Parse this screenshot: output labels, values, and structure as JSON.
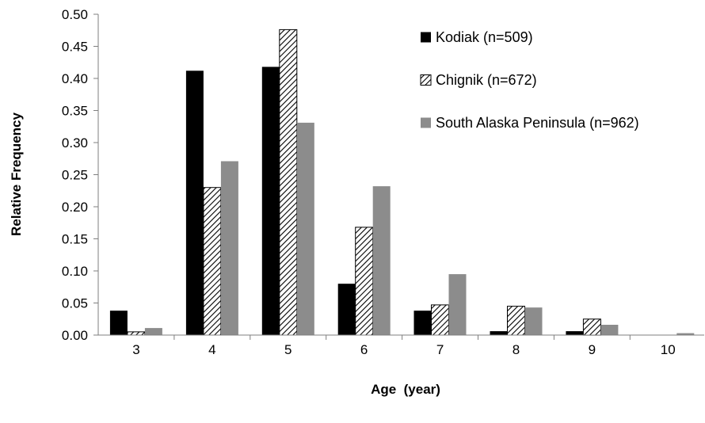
{
  "chart_data": {
    "type": "bar",
    "categories": [
      "3",
      "4",
      "5",
      "6",
      "7",
      "8",
      "9",
      "10"
    ],
    "series": [
      {
        "name": "Kodiak (n=509)",
        "fill": "solid",
        "color": "#000000",
        "values": [
          0.038,
          0.412,
          0.418,
          0.08,
          0.038,
          0.006,
          0.006,
          0.0
        ]
      },
      {
        "name": "Chignik (n=672)",
        "fill": "hatched",
        "color": "#000000",
        "values": [
          0.005,
          0.23,
          0.476,
          0.168,
          0.047,
          0.045,
          0.025,
          0.0
        ]
      },
      {
        "name": "South Alaska Peninsula (n=962)",
        "fill": "solid",
        "color": "#8c8c8c",
        "values": [
          0.011,
          0.271,
          0.331,
          0.232,
          0.095,
          0.043,
          0.016,
          0.003
        ]
      }
    ],
    "yticks": [
      "0.00",
      "0.05",
      "0.10",
      "0.15",
      "0.20",
      "0.25",
      "0.30",
      "0.35",
      "0.40",
      "0.45",
      "0.50"
    ],
    "ylim": [
      0,
      0.5
    ],
    "xlabel": "Age  (year)",
    "ylabel": "Relative Frequency",
    "grid": false,
    "legend": "top-right"
  }
}
